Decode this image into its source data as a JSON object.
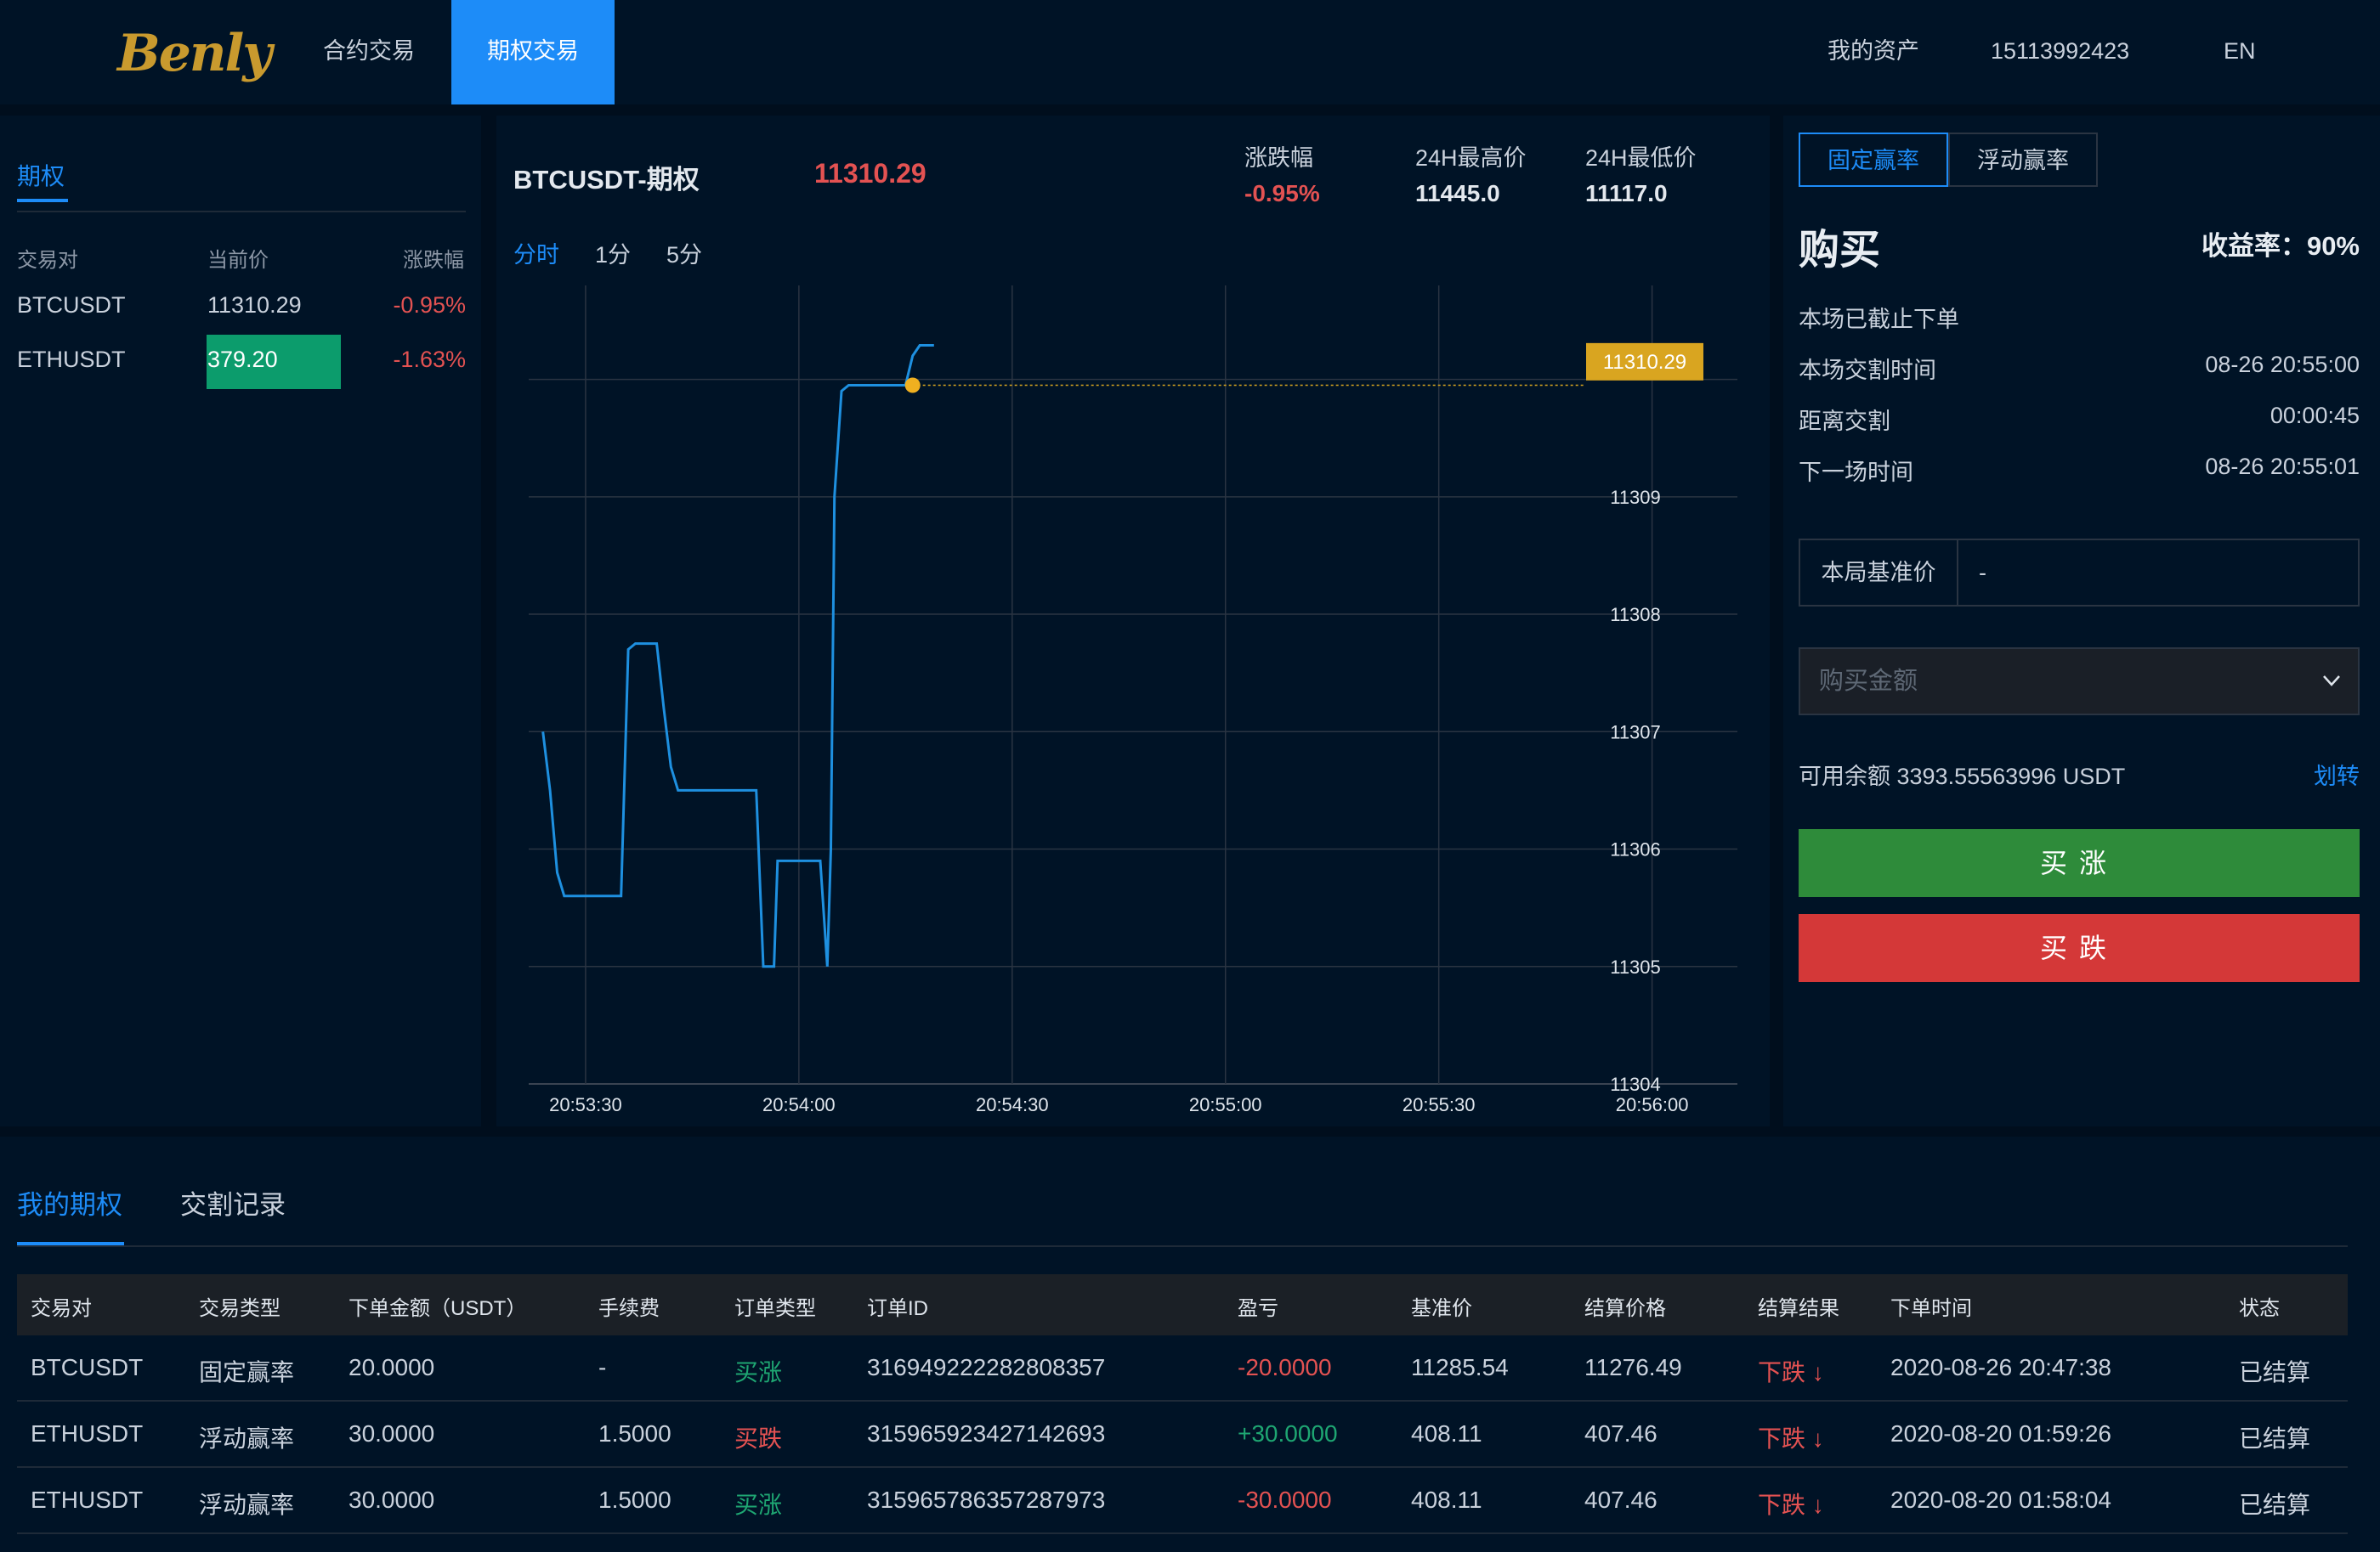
{
  "header": {
    "logo": "Benly",
    "nav": [
      {
        "label": "合约交易",
        "active": false
      },
      {
        "label": "期权交易",
        "active": true
      }
    ],
    "assets_label": "我的资产",
    "phone": "15113992423",
    "lang": "EN"
  },
  "sidebar": {
    "tab": "期权",
    "columns": [
      "交易对",
      "当前价",
      "涨跌幅"
    ],
    "pairs": [
      {
        "symbol": "BTCUSDT",
        "price": "11310.29",
        "change": "-0.95%",
        "highlight": false
      },
      {
        "symbol": "ETHUSDT",
        "price": "379.20",
        "change": "-1.63%",
        "highlight": true
      }
    ]
  },
  "chart_panel": {
    "symbol": "BTCUSDT-期权",
    "price": "11310.29",
    "stats": [
      {
        "label": "涨跌幅",
        "value": "-0.95%"
      },
      {
        "label": "24H最高价",
        "value": "11445.0"
      },
      {
        "label": "24H最低价",
        "value": "11117.0"
      }
    ],
    "intervals": [
      {
        "label": "分时",
        "active": true
      },
      {
        "label": "1分",
        "active": false
      },
      {
        "label": "5分",
        "active": false
      }
    ]
  },
  "chart_data": {
    "type": "line",
    "title": "",
    "xlabel": "",
    "ylabel": "",
    "x_ticks": [
      "20:53:30",
      "20:54:00",
      "20:54:30",
      "20:55:00",
      "20:55:30",
      "20:56:00"
    ],
    "y_ticks": [
      11304,
      11305,
      11306,
      11307,
      11308,
      11309
    ],
    "xlim_seconds_from_20_53_30": [
      -8,
      162
    ],
    "ylim": [
      11304,
      11310.8
    ],
    "grid": true,
    "current_price_label": "11310.29",
    "series": [
      {
        "t": [
          -6,
          -5,
          -4,
          -3,
          -2,
          0,
          2,
          4,
          5,
          6,
          7,
          8,
          9,
          10,
          11,
          12,
          13,
          14,
          15,
          17,
          19,
          21,
          23,
          24,
          25,
          26,
          26.5,
          27,
          28,
          29,
          30,
          31,
          32,
          33,
          34,
          34.5,
          35,
          36,
          37,
          38,
          39,
          40,
          41,
          42,
          43,
          44,
          45,
          46,
          47,
          48,
          49
        ],
        "y": [
          11307,
          11306.5,
          11305.8,
          11305.6,
          11305.6,
          11305.6,
          11305.6,
          11305.6,
          11305.6,
          11307.7,
          11307.75,
          11307.75,
          11307.75,
          11307.75,
          11307.2,
          11306.7,
          11306.5,
          11306.5,
          11306.5,
          11306.5,
          11306.5,
          11306.5,
          11306.5,
          11306.5,
          11305,
          11305,
          11305,
          11305.9,
          11305.9,
          11305.9,
          11305.9,
          11305.9,
          11305.9,
          11305.9,
          11305,
          11306,
          11309,
          11309.9,
          11309.95,
          11309.95,
          11309.95,
          11309.95,
          11309.95,
          11309.95,
          11309.95,
          11309.95,
          11309.95,
          11310.2,
          11310.29,
          11310.29,
          11310.29
        ]
      }
    ]
  },
  "buy_panel": {
    "tabs": [
      {
        "label": "固定赢率",
        "active": true
      },
      {
        "label": "浮动赢率",
        "active": false
      }
    ],
    "title": "购买",
    "yield_label": "收益率：90%",
    "status": "本场已截止下单",
    "rows": [
      {
        "label": "本场交割时间",
        "value": "08-26 20:55:00"
      },
      {
        "label": "距离交割",
        "value": "00:00:45"
      },
      {
        "label": "下一场时间",
        "value": "08-26 20:55:01"
      }
    ],
    "base_price_label": "本局基准价",
    "base_price_value": "-",
    "amount_placeholder": "购买金额",
    "balance": "可用余额 3393.55563996 USDT",
    "transfer": "划转",
    "buy_up": "买涨",
    "buy_down": "买跌",
    "up_color": "#2e8b3a",
    "down_color": "#d43838"
  },
  "orders": {
    "tabs": [
      {
        "label": "我的期权",
        "active": true
      },
      {
        "label": "交割记录",
        "active": false
      }
    ],
    "columns": [
      "交易对",
      "交易类型",
      "下单金额（USDT）",
      "手续费",
      "订单类型",
      "订单ID",
      "盈亏",
      "基准价",
      "结算价格",
      "结算结果",
      "下单时间",
      "状态"
    ],
    "rows": [
      {
        "pair": "BTCUSDT",
        "type": "固定赢率",
        "amount": "20.0000",
        "fee": "-",
        "order_type": "买涨",
        "order_type_color": "green",
        "id": "316949222282808357",
        "pnl": "-20.0000",
        "pnl_color": "red",
        "base": "11285.54",
        "settle": "11276.49",
        "result": "下跌 ↓",
        "time": "2020-08-26 20:47:38",
        "status": "已结算"
      },
      {
        "pair": "ETHUSDT",
        "type": "浮动赢率",
        "amount": "30.0000",
        "fee": "1.5000",
        "order_type": "买跌",
        "order_type_color": "red",
        "id": "315965923427142693",
        "pnl": "+30.0000",
        "pnl_color": "green",
        "base": "408.11",
        "settle": "407.46",
        "result": "下跌 ↓",
        "time": "2020-08-20 01:59:26",
        "status": "已结算"
      },
      {
        "pair": "ETHUSDT",
        "type": "浮动赢率",
        "amount": "30.0000",
        "fee": "1.5000",
        "order_type": "买涨",
        "order_type_color": "green",
        "id": "315965786357287973",
        "pnl": "-30.0000",
        "pnl_color": "red",
        "base": "408.11",
        "settle": "407.46",
        "result": "下跌 ↓",
        "time": "2020-08-20 01:58:04",
        "status": "已结算"
      }
    ]
  }
}
